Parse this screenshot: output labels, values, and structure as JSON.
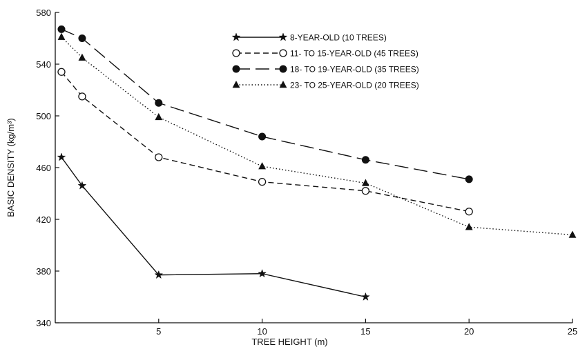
{
  "chart_data": {
    "type": "line",
    "xlabel": "TREE HEIGHT (m)",
    "ylabel": "BASIC DENSITY (kg/m³)",
    "xlim": [
      0,
      25
    ],
    "ylim": [
      340,
      580
    ],
    "x_ticks": [
      5,
      10,
      15,
      20,
      25
    ],
    "y_ticks": [
      340,
      380,
      420,
      460,
      500,
      540,
      580
    ],
    "legend_placement": "top-center",
    "grid": false,
    "series": [
      {
        "name": "8-YEAR-OLD (10 TREES)",
        "marker": "star",
        "line_style": "solid",
        "x": [
          0.3,
          1.3,
          5,
          10,
          15
        ],
        "y": [
          468,
          446,
          377,
          378,
          360
        ]
      },
      {
        "name": "11- TO 15-YEAR-OLD (45 TREES)",
        "marker": "open-circle",
        "line_style": "short-dash",
        "x": [
          0.3,
          1.3,
          5,
          10,
          15,
          20
        ],
        "y": [
          534,
          515,
          468,
          449,
          442,
          426
        ]
      },
      {
        "name": "18- TO 19-YEAR-OLD (35 TREES)",
        "marker": "filled-circle",
        "line_style": "long-dash",
        "x": [
          0.3,
          1.3,
          5,
          10,
          15,
          20
        ],
        "y": [
          567,
          560,
          510,
          484,
          466,
          451
        ]
      },
      {
        "name": "23- TO 25-YEAR-OLD (20 TREES)",
        "marker": "filled-triangle",
        "line_style": "dotted",
        "x": [
          0.3,
          1.3,
          5,
          10,
          15,
          20,
          25
        ],
        "y": [
          561,
          545,
          499,
          461,
          448,
          414,
          408
        ]
      }
    ]
  }
}
